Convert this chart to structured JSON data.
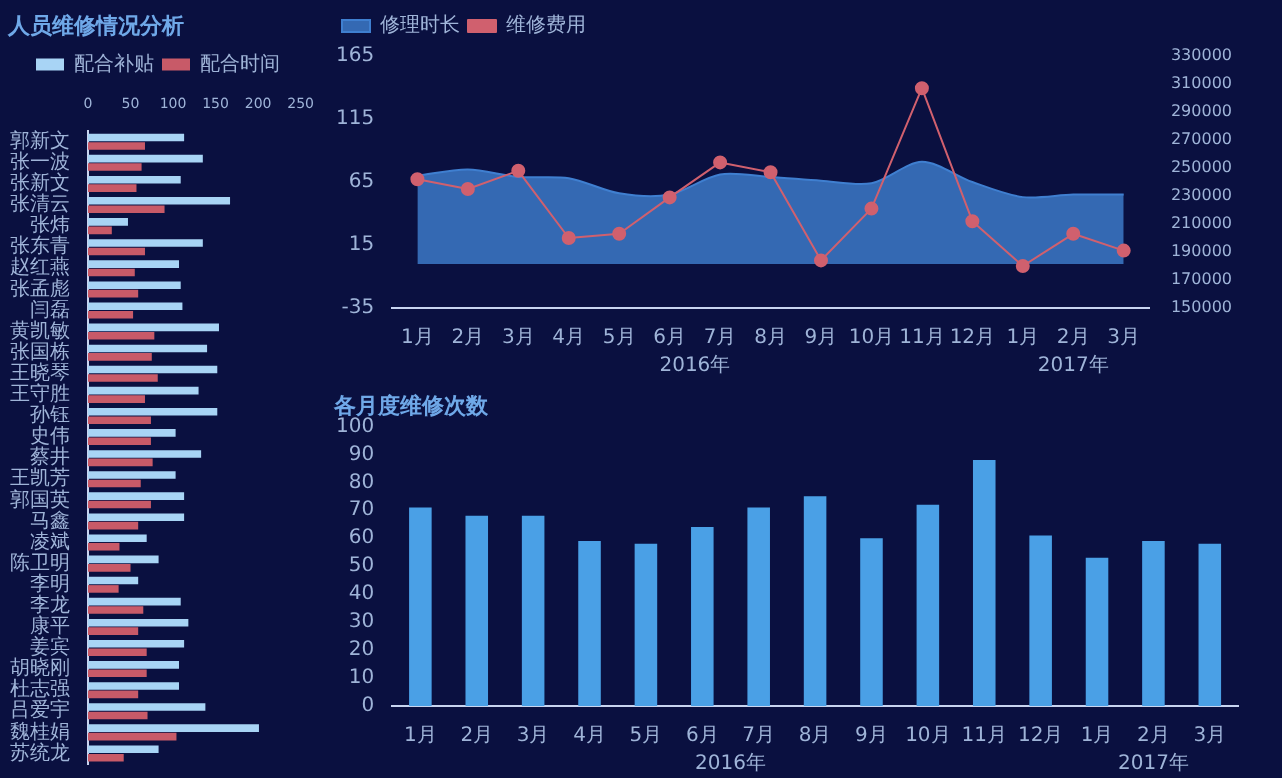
{
  "chart_data": [
    {
      "type": "bar",
      "orientation": "horizontal",
      "title": "人员维修情况分析",
      "legend": "top",
      "grid": false,
      "categories": [
        "郭新文",
        "张一波",
        "张新文",
        "张清云",
        "张炜",
        "张东青",
        "赵红燕",
        "张孟彪",
        "闫磊",
        "黄凯敏",
        "张国栋",
        "王晓琴",
        "王守胜",
        "孙钰",
        "史伟",
        "蔡井",
        "王凯芳",
        "郭国英",
        "马鑫",
        "凌斌",
        "陈卫明",
        "李明",
        "李龙",
        "康平",
        "姜宾",
        "胡晓刚",
        "杜志强",
        "吕爱宇",
        "魏桂娟",
        "苏统龙"
      ],
      "xlim": [
        0,
        250
      ],
      "xticks": [
        0,
        50,
        100,
        150,
        200,
        250
      ],
      "series": [
        {
          "name": "配合补贴",
          "color": "#a8d4f5",
          "values": [
            113,
            135,
            109,
            167,
            47,
            135,
            107,
            109,
            111,
            154,
            140,
            152,
            130,
            152,
            103,
            133,
            103,
            113,
            113,
            69,
            83,
            59,
            109,
            118,
            113,
            107,
            107,
            138,
            201,
            83
          ]
        },
        {
          "name": "配合时间",
          "color": "#c85a68",
          "values": [
            67,
            63,
            57,
            90,
            28,
            67,
            55,
            59,
            53,
            78,
            75,
            82,
            67,
            74,
            74,
            76,
            62,
            74,
            59,
            37,
            50,
            36,
            65,
            59,
            69,
            69,
            59,
            70,
            104,
            42
          ]
        }
      ]
    },
    {
      "type": "area",
      "legend": "top left",
      "grid": false,
      "categories": [
        "1月",
        "2月",
        "3月",
        "4月",
        "5月",
        "6月",
        "7月",
        "8月",
        "9月",
        "10月",
        "11月",
        "12月",
        "1月",
        "2月",
        "3月"
      ],
      "annotations": [
        "2016年",
        "2017年"
      ],
      "ylim": [
        -35,
        165
      ],
      "yticks": [
        -35,
        15,
        65,
        115,
        165
      ],
      "y2lim": [
        150000,
        330000
      ],
      "y2ticks": [
        150000,
        170000,
        190000,
        210000,
        230000,
        250000,
        270000,
        290000,
        310000,
        330000
      ],
      "series": [
        {
          "name": "修理时长",
          "color": "#3f7fd0",
          "values": [
            70,
            75,
            69,
            68,
            56,
            55,
            71,
            69,
            66,
            64,
            81,
            65,
            53,
            55,
            55
          ]
        },
        {
          "name": "维修费用",
          "type": "line",
          "axis": "y2",
          "marker": "circle",
          "color": "#d0606e",
          "values": [
            242000,
            235000,
            248000,
            200000,
            203000,
            229000,
            254000,
            247000,
            184000,
            221000,
            307000,
            212000,
            180000,
            203000,
            191000
          ]
        }
      ]
    },
    {
      "type": "bar",
      "title": "各月度维修次数",
      "legend": false,
      "grid": false,
      "categories": [
        "1月",
        "2月",
        "3月",
        "4月",
        "5月",
        "6月",
        "7月",
        "8月",
        "9月",
        "10月",
        "11月",
        "12月",
        "1月",
        "2月",
        "3月"
      ],
      "annotations": [
        "2016年",
        "2017年"
      ],
      "ylim": [
        0,
        100
      ],
      "yticks": [
        0,
        10,
        20,
        30,
        40,
        50,
        60,
        70,
        80,
        90,
        100
      ],
      "color": "#4aa0e6",
      "values": [
        71,
        68,
        68,
        59,
        58,
        64,
        71,
        75,
        60,
        72,
        88,
        61,
        53,
        59,
        58
      ]
    }
  ]
}
